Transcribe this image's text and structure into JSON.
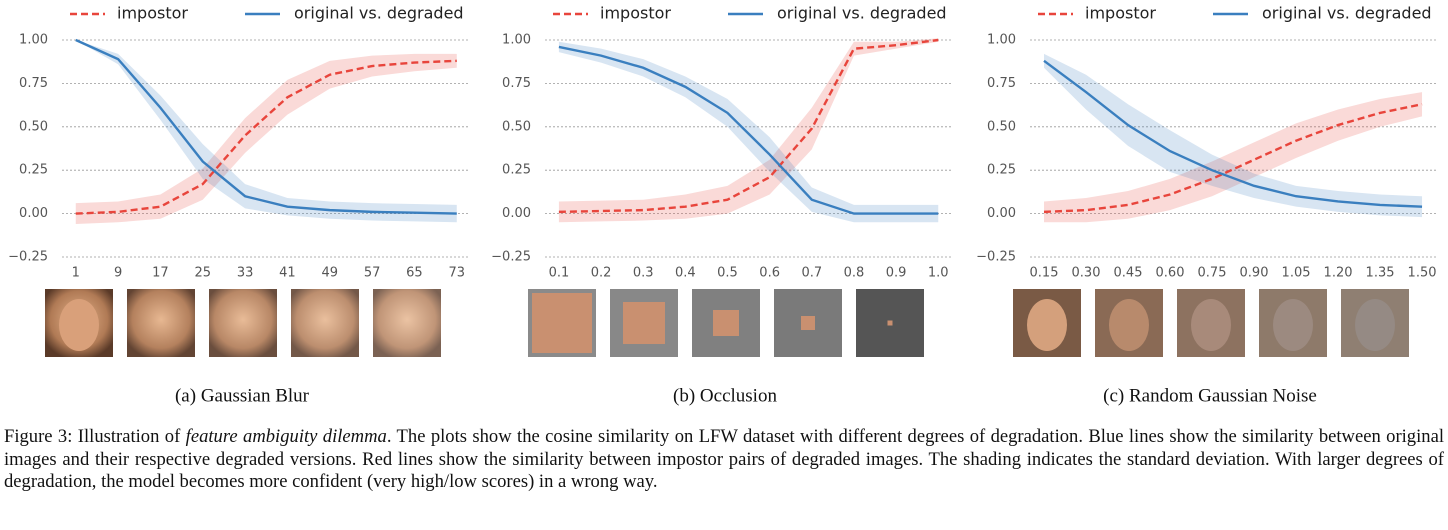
{
  "chart_data": [
    {
      "type": "line",
      "caption": "(a) Gaussian Blur",
      "x": [
        1,
        9,
        17,
        25,
        33,
        41,
        49,
        57,
        65,
        73
      ],
      "xlim": [
        -1.6,
        75.5
      ],
      "xticks": [
        1,
        9,
        17,
        25,
        33,
        41,
        49,
        57,
        65,
        73
      ],
      "ylim": [
        -0.25,
        1.0
      ],
      "yticks": [
        {
          "value": -0.25,
          "label": "−0.25"
        },
        {
          "value": 0,
          "label": "0.00"
        },
        {
          "value": 0.25,
          "label": "0.25"
        },
        {
          "value": 0.5,
          "label": "0.50"
        },
        {
          "value": 0.75,
          "label": "0.75"
        },
        {
          "value": 1.0,
          "label": "1.00"
        }
      ],
      "grid": true,
      "series": [
        {
          "name": "impostor",
          "color": "#e8453c",
          "linestyle": "dashed",
          "values": [
            0.0,
            0.01,
            0.04,
            0.17,
            0.45,
            0.67,
            0.8,
            0.85,
            0.87,
            0.88
          ],
          "std": [
            0.06,
            0.06,
            0.07,
            0.09,
            0.1,
            0.1,
            0.08,
            0.06,
            0.05,
            0.04
          ]
        },
        {
          "name": "original vs. degraded",
          "color": "#3a7fbf",
          "linestyle": "solid",
          "values": [
            1.0,
            0.89,
            0.61,
            0.3,
            0.1,
            0.04,
            0.02,
            0.01,
            0.005,
            0.0
          ],
          "std": [
            0.0,
            0.03,
            0.07,
            0.1,
            0.07,
            0.05,
            0.05,
            0.05,
            0.05,
            0.05
          ]
        }
      ]
    },
    {
      "type": "line",
      "caption": "(b) Occlusion",
      "x": [
        0.1,
        0.2,
        0.3,
        0.4,
        0.5,
        0.6,
        0.7,
        0.8,
        0.9,
        1.0
      ],
      "xlim": [
        0.067,
        1.035
      ],
      "xticks": [
        0.1,
        0.2,
        0.3,
        0.4,
        0.5,
        0.6,
        0.7,
        0.8,
        0.9,
        {
          "value": 1.0,
          "label": "1.0"
        }
      ],
      "ylim": [
        -0.25,
        1.0
      ],
      "yticks": [
        {
          "value": -0.25,
          "label": "−0.25"
        },
        {
          "value": 0,
          "label": "0.00"
        },
        {
          "value": 0.25,
          "label": "0.25"
        },
        {
          "value": 0.5,
          "label": "0.50"
        },
        {
          "value": 0.75,
          "label": "0.75"
        },
        {
          "value": 1.0,
          "label": "1.00"
        }
      ],
      "grid": true,
      "series": [
        {
          "name": "impostor",
          "color": "#e8453c",
          "linestyle": "dashed",
          "values": [
            0.01,
            0.015,
            0.02,
            0.04,
            0.08,
            0.21,
            0.49,
            0.95,
            0.97,
            1.0
          ],
          "std": [
            0.06,
            0.06,
            0.06,
            0.07,
            0.08,
            0.1,
            0.12,
            0.04,
            0.02,
            0.01
          ]
        },
        {
          "name": "original vs. degraded",
          "color": "#3a7fbf",
          "linestyle": "solid",
          "values": [
            0.96,
            0.91,
            0.84,
            0.73,
            0.58,
            0.34,
            0.08,
            0.0,
            0.0,
            0.0
          ],
          "std": [
            0.03,
            0.04,
            0.05,
            0.06,
            0.08,
            0.1,
            0.07,
            0.05,
            0.05,
            0.05
          ]
        }
      ]
    },
    {
      "type": "line",
      "caption": "(c) Random Gaussian Noise",
      "x": [
        0.15,
        0.3,
        0.45,
        0.6,
        0.75,
        0.9,
        1.05,
        1.2,
        1.35,
        1.5
      ],
      "xlim": [
        0.1,
        1.557
      ],
      "xticks": [
        0.15,
        {
          "value": 0.3,
          "label": "0.30"
        },
        0.45,
        {
          "value": 0.6,
          "label": "0.60"
        },
        0.75,
        {
          "value": 0.9,
          "label": "0.90"
        },
        1.05,
        {
          "value": 1.2,
          "label": "1.20"
        },
        1.35,
        {
          "value": 1.5,
          "label": "1.50"
        }
      ],
      "ylim": [
        -0.25,
        1.0
      ],
      "yticks": [
        {
          "value": -0.25,
          "label": "−0.25"
        },
        {
          "value": 0,
          "label": "0.00"
        },
        {
          "value": 0.25,
          "label": "0.25"
        },
        {
          "value": 0.5,
          "label": "0.50"
        },
        {
          "value": 0.75,
          "label": "0.75"
        },
        {
          "value": 1.0,
          "label": "1.00"
        }
      ],
      "grid": true,
      "series": [
        {
          "name": "impostor",
          "color": "#e8453c",
          "linestyle": "dashed",
          "values": [
            0.01,
            0.02,
            0.05,
            0.11,
            0.2,
            0.31,
            0.42,
            0.51,
            0.58,
            0.63
          ],
          "std": [
            0.06,
            0.07,
            0.08,
            0.09,
            0.1,
            0.1,
            0.1,
            0.09,
            0.08,
            0.07
          ]
        },
        {
          "name": "original vs. degraded",
          "color": "#3a7fbf",
          "linestyle": "solid",
          "values": [
            0.88,
            0.7,
            0.51,
            0.36,
            0.25,
            0.16,
            0.1,
            0.07,
            0.05,
            0.04
          ],
          "std": [
            0.04,
            0.1,
            0.12,
            0.12,
            0.09,
            0.07,
            0.06,
            0.06,
            0.06,
            0.06
          ]
        }
      ]
    }
  ],
  "figure_caption": {
    "label": "Figure 3:",
    "before": " Illustration of ",
    "emphasis": "feature ambiguity dilemma",
    "after": ". The plots show the cosine similarity on LFW dataset with different degrees of degradation. Blue lines show the similarity between original images and their respective degraded versions.  Red lines show the similarity between impostor pairs of degraded images. The shading indicates the standard deviation. With larger degrees of degradation, the model becomes more confident (very high/low scores) in a wrong way."
  }
}
